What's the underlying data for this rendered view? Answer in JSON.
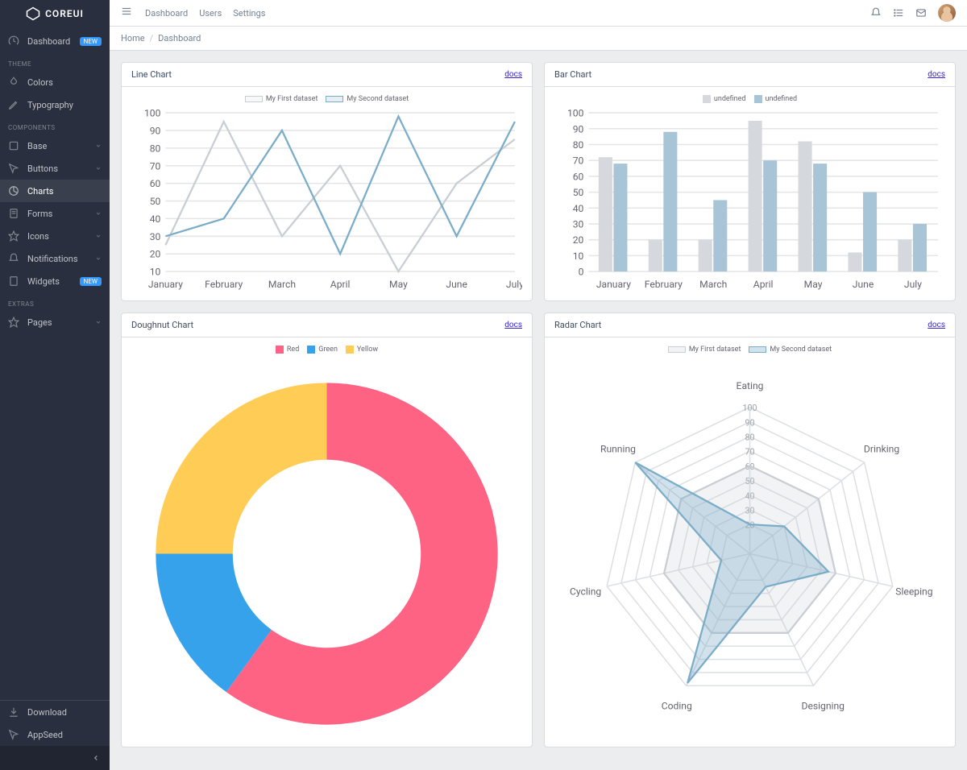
{
  "brand": "COREUI",
  "sidebar": {
    "dashboard": {
      "label": "Dashboard",
      "badge": "NEW"
    },
    "titles": {
      "theme": "THEME",
      "components": "COMPONENTS",
      "extras": "EXTRAS"
    },
    "theme": {
      "colors": "Colors",
      "typography": "Typography"
    },
    "components": {
      "base": "Base",
      "buttons": "Buttons",
      "charts": "Charts",
      "forms": "Forms",
      "icons": "Icons",
      "notifications": "Notifications",
      "widgets": "Widgets",
      "widgets_badge": "NEW"
    },
    "extras": {
      "pages": "Pages"
    },
    "footer": {
      "download": "Download",
      "appseed": "AppSeed"
    }
  },
  "header": {
    "nav": {
      "dashboard": "Dashboard",
      "users": "Users",
      "settings": "Settings"
    }
  },
  "breadcrumb": {
    "home": "Home",
    "current": "Dashboard"
  },
  "docs_label": "docs",
  "line_chart": {
    "title": "Line Chart",
    "type": "line",
    "categories": [
      "January",
      "February",
      "March",
      "April",
      "May",
      "June",
      "July"
    ],
    "series": [
      {
        "label": "My First dataset",
        "stroke": "#c8ced3",
        "fill": "rgba(200,206,211,0.15)",
        "values": [
          25,
          95,
          30,
          70,
          10,
          60,
          85
        ]
      },
      {
        "label": "My Second dataset",
        "stroke": "#7badc9",
        "fill": "rgba(123,173,201,0.2)",
        "values": [
          30,
          40,
          90,
          20,
          98,
          30,
          95
        ]
      }
    ],
    "ylim": [
      10,
      100
    ],
    "ytick_step": 10,
    "grid_color": "#e4e5e6",
    "label_fontsize": 9
  },
  "bar_chart": {
    "title": "Bar Chart",
    "type": "bar",
    "categories": [
      "January",
      "February",
      "March",
      "April",
      "May",
      "June",
      "July"
    ],
    "series": [
      {
        "label": "undefined",
        "color": "#d5d8dc",
        "values": [
          72,
          20,
          20,
          95,
          82,
          12,
          20
        ]
      },
      {
        "label": "undefined",
        "color": "#a8c5d8",
        "values": [
          68,
          88,
          45,
          70,
          68,
          50,
          30
        ]
      }
    ],
    "ylim": [
      0,
      100
    ],
    "ytick_step": 10,
    "grid_color": "#e4e5e6",
    "label_fontsize": 9
  },
  "doughnut_chart": {
    "title": "Doughnut Chart",
    "type": "doughnut",
    "slices": [
      {
        "label": "Red",
        "color": "#ff6384",
        "value": 60
      },
      {
        "label": "Green",
        "color": "#36a2eb",
        "value": 15
      },
      {
        "label": "Yellow",
        "color": "#ffcd56",
        "value": 25
      }
    ],
    "inner_ratio": 0.55
  },
  "radar_chart": {
    "title": "Radar Chart",
    "type": "radar",
    "axes": [
      "Eating",
      "Drinking",
      "Sleeping",
      "Designing",
      "Coding",
      "Cycling",
      "Running"
    ],
    "rings": [
      20,
      30,
      40,
      50,
      60,
      70,
      80,
      90,
      100
    ],
    "series": [
      {
        "label": "My First dataset",
        "stroke": "#c8ced3",
        "fill": "rgba(200,206,211,0.25)",
        "values": [
          60,
          60,
          60,
          60,
          60,
          60,
          60
        ]
      },
      {
        "label": "My Second dataset",
        "stroke": "#7badc9",
        "fill": "rgba(123,173,201,0.35)",
        "values": [
          20,
          30,
          55,
          25,
          98,
          20,
          100
        ]
      }
    ],
    "grid_color": "#dcdfe3",
    "label_fontsize": 9
  }
}
